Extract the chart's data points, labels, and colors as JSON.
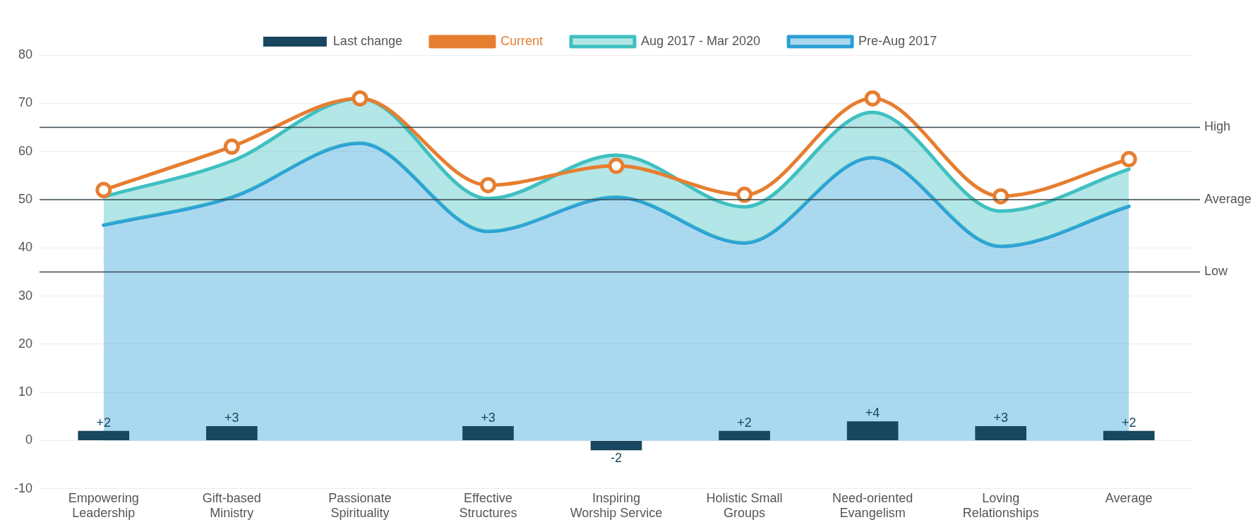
{
  "chart_data": {
    "type": "line",
    "categories": [
      "Empowering Leadership",
      "Gift-based Ministry",
      "Passionate Spirituality",
      "Effective Structures",
      "Inspiring Worship Service",
      "Holistic Small Groups",
      "Need-oriented Evangelism",
      "Loving Relationships",
      "Average"
    ],
    "series": [
      {
        "name": "Last change",
        "type": "bar",
        "color": "#17465e",
        "values": [
          2,
          3,
          0,
          3,
          -2,
          2,
          4,
          3,
          2
        ],
        "value_labels": [
          "+2",
          "+3",
          null,
          "+3",
          "-2",
          "+2",
          "+4",
          "+3",
          "+2"
        ]
      },
      {
        "name": "Current",
        "type": "line",
        "color": "#e67e30",
        "marker": "circle",
        "values": [
          52,
          61,
          71,
          53,
          57,
          51,
          71,
          50.7,
          58.4
        ]
      },
      {
        "name": "Aug 2017 - Mar 2020",
        "type": "area",
        "color": "#40c0c0",
        "marker": "none",
        "values": [
          50.6,
          58,
          71,
          50.2,
          59.2,
          48.5,
          68.1,
          47.6,
          56.3
        ]
      },
      {
        "name": "Pre-Aug 2017",
        "type": "area",
        "color": "#2a9fd6",
        "marker": "none",
        "values": [
          44.7,
          50.5,
          61.7,
          43.4,
          50.5,
          41,
          58.7,
          40.3,
          48.6
        ]
      }
    ],
    "ylim": [
      -10,
      80
    ],
    "yticks": [
      -10,
      0,
      10,
      20,
      30,
      40,
      50,
      60,
      70,
      80
    ],
    "grid": "y",
    "legend": "top",
    "ref_lines": [
      {
        "axis": "y",
        "value": 65,
        "label": "High",
        "color": "#3a4a50"
      },
      {
        "axis": "y",
        "value": 50,
        "label": "Average",
        "color": "#3a4a50"
      },
      {
        "axis": "y",
        "value": 35,
        "label": "Low",
        "color": "#3a4a50"
      }
    ]
  }
}
